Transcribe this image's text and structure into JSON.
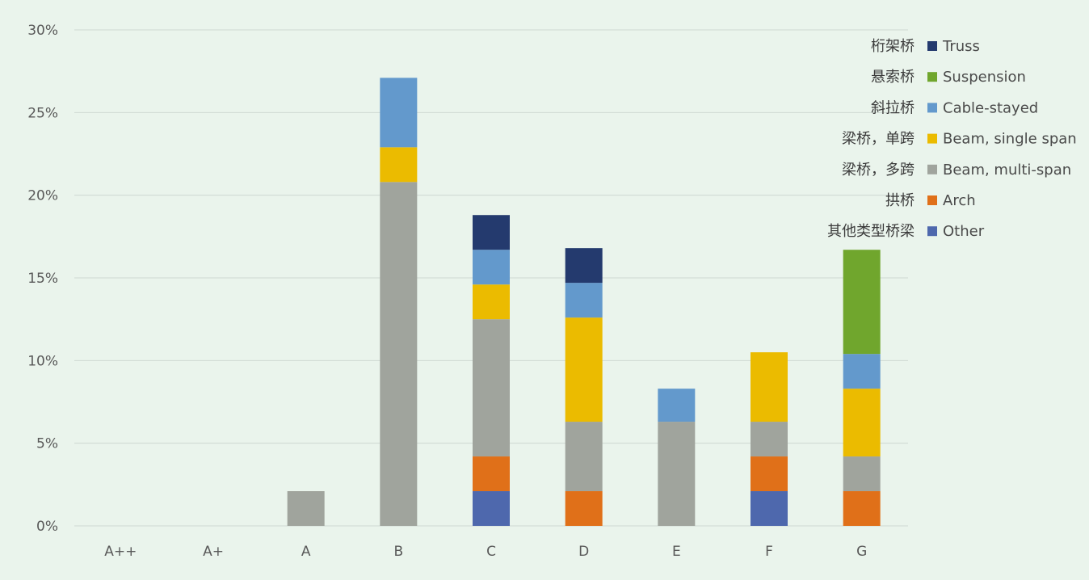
{
  "chart_data": {
    "type": "bar",
    "stacked": true,
    "categories": [
      "A++",
      "A+",
      "A",
      "B",
      "C",
      "D",
      "E",
      "F",
      "G"
    ],
    "y_ticks": [
      "0%",
      "5%",
      "10%",
      "15%",
      "20%",
      "25%",
      "30%"
    ],
    "ylim": [
      0,
      30
    ],
    "grid": true,
    "legend_position": "top-right",
    "series": [
      {
        "key": "other",
        "name": "Other",
        "name_cn": "其他类型桥梁",
        "color": "#4e68ad",
        "values": [
          0,
          0,
          0,
          0,
          2.1,
          0,
          0,
          2.1,
          0
        ]
      },
      {
        "key": "arch",
        "name": "Arch",
        "name_cn": "拱桥",
        "color": "#e07019",
        "values": [
          0,
          0,
          0,
          0,
          2.1,
          2.1,
          0,
          2.1,
          2.1
        ]
      },
      {
        "key": "beam_multi",
        "name": "Beam, multi-span",
        "name_cn": "梁桥，多跨",
        "color": "#a0a49d",
        "values": [
          0,
          0,
          2.1,
          20.8,
          8.3,
          4.2,
          6.3,
          2.1,
          2.1
        ]
      },
      {
        "key": "beam_single",
        "name": "Beam, single span",
        "name_cn": "梁桥，单跨",
        "color": "#ebbb00",
        "values": [
          0,
          0,
          0,
          2.1,
          2.1,
          6.3,
          0,
          4.2,
          4.1
        ]
      },
      {
        "key": "cable",
        "name": "Cable-stayed",
        "name_cn": "斜拉桥",
        "color": "#6399cc",
        "values": [
          0,
          0,
          0,
          4.2,
          2.1,
          2.1,
          2.0,
          0,
          2.1
        ]
      },
      {
        "key": "suspension",
        "name": "Suspension",
        "name_cn": "悬索桥",
        "color": "#70a62d",
        "values": [
          0,
          0,
          0,
          0,
          0,
          0,
          0,
          0,
          6.3
        ]
      },
      {
        "key": "truss",
        "name": "Truss",
        "name_cn": "桁架桥",
        "color": "#243a6e",
        "values": [
          0,
          0,
          0,
          0,
          2.1,
          2.1,
          0,
          0,
          0
        ]
      }
    ],
    "legend_order": [
      "truss",
      "suspension",
      "cable",
      "beam_single",
      "beam_multi",
      "arch",
      "other"
    ]
  }
}
